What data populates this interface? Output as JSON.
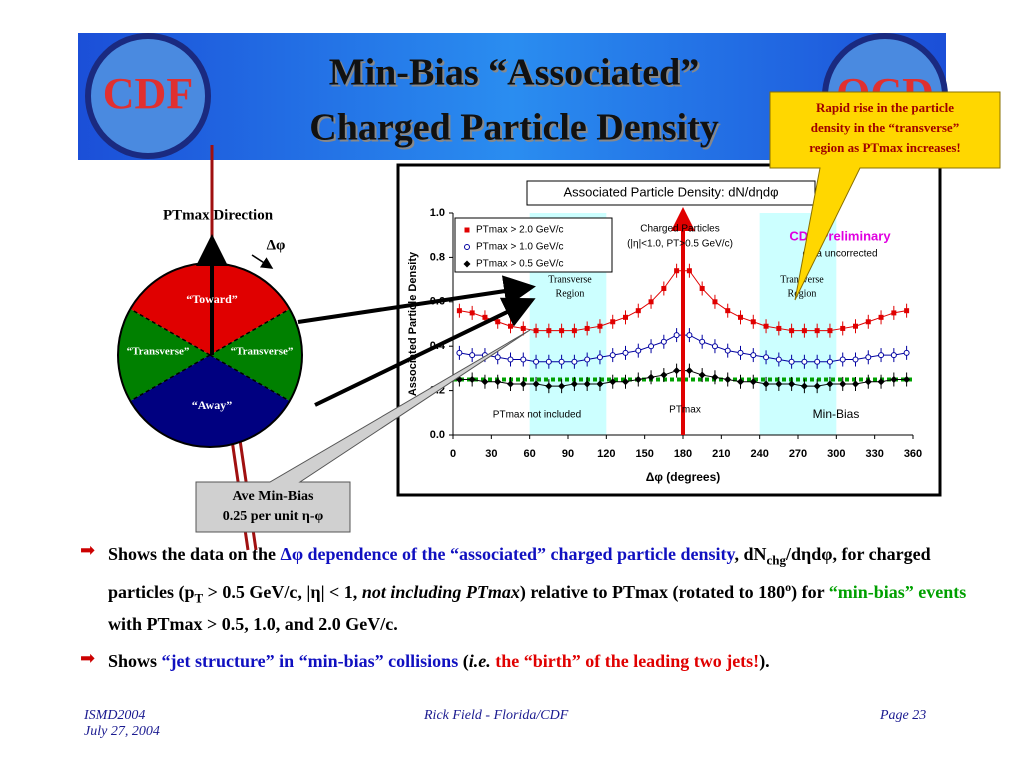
{
  "header": {
    "title": [
      "Min-Bias “Associated”",
      "Charged Particle Density"
    ],
    "logos": [
      "CDF",
      "QCD"
    ]
  },
  "callout": {
    "lines": [
      "Rapid rise in the particle",
      "density in the “transverse”",
      "region as PTmax increases!"
    ]
  },
  "diagram": {
    "direction_label": "PTmax Direction",
    "angle_label": "Δφ",
    "regions": [
      "“Toward”",
      "“Transverse”",
      "“Transverse”",
      "“Away”"
    ]
  },
  "baseline_callout": {
    "lines": [
      "Ave Min-Bias",
      "0.25 per unit η-φ"
    ]
  },
  "chart_data": {
    "type": "scatter",
    "title": "Associated Particle Density: dN/dηdφ",
    "ylabel": "Associated Particle Density",
    "xlabel": "Δφ  (degrees)",
    "xlim": [
      0,
      360
    ],
    "xticks": [
      0,
      30,
      60,
      90,
      120,
      150,
      180,
      210,
      240,
      270,
      300,
      330,
      360
    ],
    "ylim": [
      0,
      1
    ],
    "yticks": [
      {
        "value": 0,
        "label": "0.0"
      },
      {
        "value": 0.2,
        "label": "0.2"
      },
      {
        "value": 0.4,
        "label": "0.4"
      },
      {
        "value": 0.6,
        "label": "0.6"
      },
      {
        "value": 0.8,
        "label": "0.8"
      },
      {
        "value": 1,
        "label": "1.0"
      }
    ],
    "x": [
      5,
      15,
      25,
      35,
      45,
      55,
      65,
      75,
      85,
      95,
      105,
      115,
      125,
      135,
      145,
      155,
      165,
      175,
      185,
      195,
      205,
      215,
      225,
      235,
      245,
      255,
      265,
      275,
      285,
      295,
      305,
      315,
      325,
      335,
      345,
      355
    ],
    "series": [
      {
        "name": "PTmax > 2.0 GeV/c",
        "color": "#e00000",
        "marker": "square",
        "values": [
          0.56,
          0.55,
          0.53,
          0.51,
          0.49,
          0.48,
          0.47,
          0.47,
          0.47,
          0.47,
          0.48,
          0.49,
          0.51,
          0.53,
          0.56,
          0.6,
          0.66,
          0.74,
          0.74,
          0.66,
          0.6,
          0.56,
          0.53,
          0.51,
          0.49,
          0.48,
          0.47,
          0.47,
          0.47,
          0.47,
          0.48,
          0.49,
          0.51,
          0.53,
          0.55,
          0.56
        ]
      },
      {
        "name": "PTmax > 1.0 GeV/c",
        "color": "#0000a0",
        "marker": "circle",
        "values": [
          0.37,
          0.36,
          0.36,
          0.35,
          0.34,
          0.34,
          0.33,
          0.33,
          0.33,
          0.33,
          0.34,
          0.35,
          0.36,
          0.37,
          0.38,
          0.4,
          0.42,
          0.45,
          0.45,
          0.42,
          0.4,
          0.38,
          0.37,
          0.36,
          0.35,
          0.34,
          0.33,
          0.33,
          0.33,
          0.33,
          0.34,
          0.34,
          0.35,
          0.36,
          0.36,
          0.37
        ]
      },
      {
        "name": "PTmax > 0.5 GeV/c",
        "color": "#000000",
        "marker": "diamond",
        "values": [
          0.25,
          0.25,
          0.24,
          0.24,
          0.23,
          0.23,
          0.23,
          0.22,
          0.22,
          0.23,
          0.23,
          0.23,
          0.24,
          0.24,
          0.25,
          0.26,
          0.27,
          0.29,
          0.29,
          0.27,
          0.26,
          0.25,
          0.24,
          0.24,
          0.23,
          0.23,
          0.23,
          0.22,
          0.22,
          0.23,
          0.23,
          0.23,
          0.24,
          0.24,
          0.25,
          0.25
        ]
      }
    ],
    "baseline": {
      "value": 0.25,
      "color": "#00a000"
    },
    "shaded_regions": [
      [
        60,
        120
      ],
      [
        240,
        300
      ]
    ],
    "shade_color": "#ccffff",
    "ptmax_x": 180,
    "annotations": {
      "particles": "Charged Particles",
      "cuts": "(|η|<1.0, PT>0.5 GeV/c)",
      "preliminary": "CDF Preliminary",
      "uncorrected": "data uncorrected",
      "transverse": [
        "Transverse",
        "Region"
      ],
      "not_included": "PTmax not included",
      "ptmax": "PTmax",
      "minbias": "Min-Bias"
    }
  },
  "bullets": [
    {
      "segments": [
        "Shows the data on the ",
        "Δφ dependence of the “associated” charged particle density",
        ", dN",
        "chg",
        "/dηdφ, for charged particles (p",
        "T",
        " > 0.5 GeV/c, |η| < 1, ",
        "not including PTmax",
        ") relative to PTmax (rotated to 180",
        "o",
        ") for ",
        "“min-bias” events",
        " with PTmax > 0.5, 1.0, and 2.0 GeV/c."
      ]
    },
    {
      "segments": [
        "Shows ",
        "“jet structure” in “min-bias” collisions",
        " (",
        "i.e.",
        " ",
        "the “birth” of the leading two jets!",
        ")."
      ]
    }
  ],
  "footer": {
    "left": [
      "ISMD2004",
      "July 27, 2004"
    ],
    "center": "Rick Field - Florida/CDF",
    "right": "Page 23"
  }
}
